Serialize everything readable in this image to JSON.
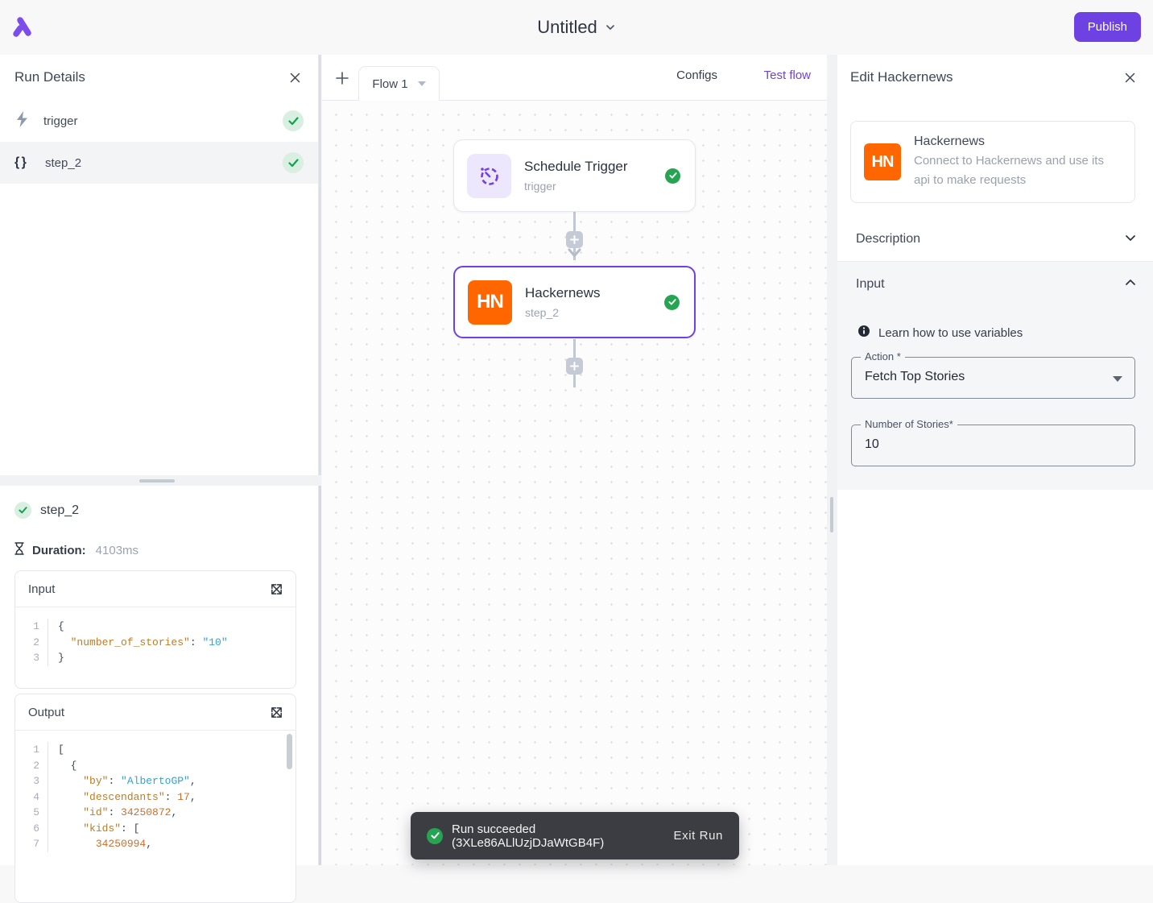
{
  "topbar": {
    "title": "Untitled",
    "publish_label": "Publish"
  },
  "run_details": {
    "title": "Run Details",
    "items": [
      {
        "label": "trigger",
        "icon": "lightning-icon"
      },
      {
        "label": "step_2",
        "icon": "braces-icon",
        "glyph": "{ }",
        "selected": true
      }
    ]
  },
  "step_details": {
    "step_name": "step_2",
    "duration_label": "Duration:",
    "duration_value": "4103ms",
    "input_code": {
      "title": "Input",
      "lines": [
        [
          [
            "p",
            "{"
          ]
        ],
        [
          [
            "w",
            "  "
          ],
          [
            "k",
            "\"number_of_stories\""
          ],
          [
            "p",
            ": "
          ],
          [
            "s",
            "\"10\""
          ]
        ],
        [
          [
            "p",
            "}"
          ]
        ]
      ]
    },
    "output_code": {
      "title": "Output",
      "lines": [
        [
          [
            "p",
            "["
          ]
        ],
        [
          [
            "w",
            "  "
          ],
          [
            "p",
            "{"
          ]
        ],
        [
          [
            "w",
            "    "
          ],
          [
            "k",
            "\"by\""
          ],
          [
            "p",
            ": "
          ],
          [
            "s",
            "\"AlbertoGP\""
          ],
          [
            "p",
            ","
          ]
        ],
        [
          [
            "w",
            "    "
          ],
          [
            "k",
            "\"descendants\""
          ],
          [
            "p",
            ": "
          ],
          [
            "n",
            "17"
          ],
          [
            "p",
            ","
          ]
        ],
        [
          [
            "w",
            "    "
          ],
          [
            "k",
            "\"id\""
          ],
          [
            "p",
            ": "
          ],
          [
            "n",
            "34250872"
          ],
          [
            "p",
            ","
          ]
        ],
        [
          [
            "w",
            "    "
          ],
          [
            "k",
            "\"kids\""
          ],
          [
            "p",
            ": "
          ],
          [
            "p",
            "["
          ]
        ],
        [
          [
            "w",
            "      "
          ],
          [
            "n",
            "34250994"
          ],
          [
            "p",
            ","
          ]
        ]
      ]
    }
  },
  "canvas": {
    "tab_label": "Flow 1",
    "configs_label": "Configs",
    "test_flow_label": "Test flow",
    "nodes": [
      {
        "title": "Schedule Trigger",
        "subtitle": "trigger",
        "icon": "timer-icon",
        "status": "success"
      },
      {
        "title": "Hackernews",
        "subtitle": "step_2",
        "icon_text": "HN",
        "status": "success",
        "selected": true
      }
    ]
  },
  "edit_panel": {
    "title": "Edit Hackernews",
    "piece": {
      "icon_text": "HN",
      "name": "Hackernews",
      "description": "Connect to Hackernews and use its api to make requests"
    },
    "description_section_label": "Description",
    "input_section_label": "Input",
    "learn_link_label": "Learn how to use variables",
    "fields": [
      {
        "label": "Action *",
        "value": "Fetch Top Stories",
        "type": "select"
      },
      {
        "label": "Number of Stories*",
        "value": "10",
        "type": "text"
      }
    ]
  },
  "toast": {
    "message": "Run succeeded (3XLe86ALlUzjDJaWtGB4F)",
    "action_label": "Exit Run"
  },
  "colors": {
    "accent_purple": "#6e41e2",
    "hackernews_orange": "#ff6600",
    "success_green": "#27a452",
    "soft_green": "#d9efe2",
    "toast_bg": "#3b3d42"
  }
}
